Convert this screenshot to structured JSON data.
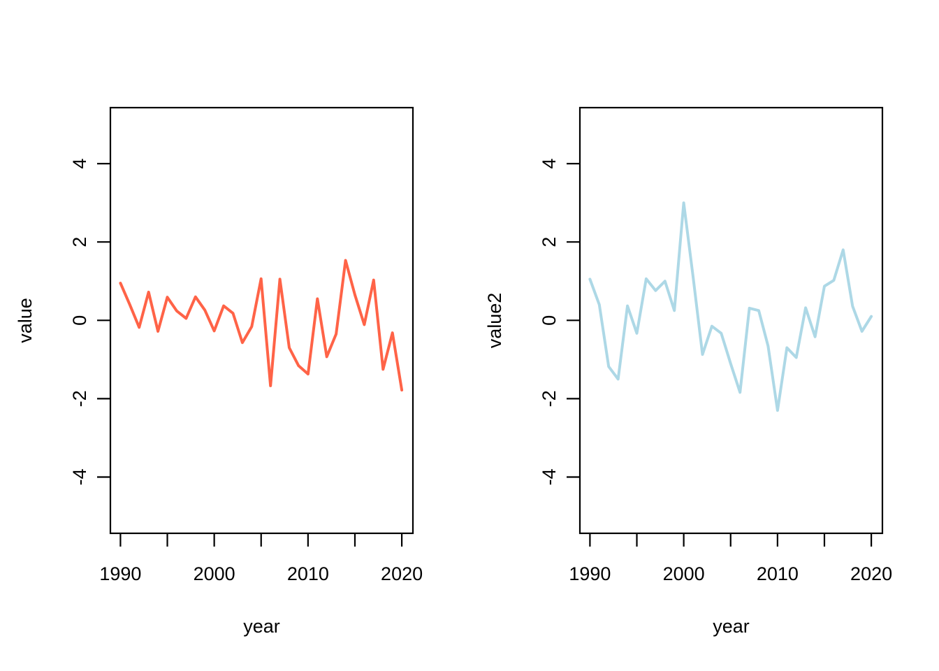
{
  "page": {
    "background": "#ffffff",
    "text_color": "#000000"
  },
  "chart_data": [
    {
      "type": "line",
      "panel": "left",
      "title": "",
      "xlabel": "year",
      "ylabel": "value",
      "line_color": "#FF6347",
      "line_color_name": "tomato",
      "axis_color": "#000000",
      "grid": false,
      "legend": null,
      "xlim": [
        1988.9,
        2021.1
      ],
      "ylim": [
        -5.4,
        5.4
      ],
      "xticks": [
        1990,
        1995,
        2000,
        2005,
        2010,
        2015,
        2020
      ],
      "xtick_labels": [
        "1990",
        "",
        "2000",
        "",
        "2010",
        "",
        "2020"
      ],
      "yticks": [
        -4,
        -2,
        0,
        2,
        4
      ],
      "ytick_labels": [
        "-4",
        "-2",
        "0",
        "2",
        "4"
      ],
      "x": [
        1990,
        1991,
        1992,
        1993,
        1994,
        1995,
        1996,
        1997,
        1998,
        1999,
        2000,
        2001,
        2002,
        2003,
        2004,
        2005,
        2006,
        2007,
        2008,
        2009,
        2010,
        2011,
        2012,
        2013,
        2014,
        2015,
        2016,
        2017,
        2018,
        2019,
        2020
      ],
      "values": [
        0.95,
        0.4,
        -0.18,
        0.72,
        -0.28,
        0.59,
        0.24,
        0.05,
        0.6,
        0.26,
        -0.27,
        0.37,
        0.18,
        -0.57,
        -0.16,
        1.06,
        -1.67,
        1.05,
        -0.7,
        -1.16,
        -1.37,
        0.55,
        -0.93,
        -0.35,
        1.53,
        0.65,
        -0.11,
        1.03,
        -1.25,
        -0.32,
        -1.78
      ]
    },
    {
      "type": "line",
      "panel": "right",
      "title": "",
      "xlabel": "year",
      "ylabel": "value2",
      "line_color": "#ADD8E6",
      "line_color_name": "lightblue",
      "axis_color": "#000000",
      "grid": false,
      "legend": null,
      "xlim": [
        1988.9,
        2021.1
      ],
      "ylim": [
        -5.4,
        5.4
      ],
      "xticks": [
        1990,
        1995,
        2000,
        2005,
        2010,
        2015,
        2020
      ],
      "xtick_labels": [
        "1990",
        "",
        "2000",
        "",
        "2010",
        "",
        "2020"
      ],
      "yticks": [
        -4,
        -2,
        0,
        2,
        4
      ],
      "ytick_labels": [
        "-4",
        "-2",
        "0",
        "2",
        "4"
      ],
      "x": [
        1990,
        1991,
        1992,
        1993,
        1994,
        1995,
        1996,
        1997,
        1998,
        1999,
        2000,
        2001,
        2002,
        2003,
        2004,
        2005,
        2006,
        2007,
        2008,
        2009,
        2010,
        2011,
        2012,
        2013,
        2014,
        2015,
        2016,
        2017,
        2018,
        2019,
        2020
      ],
      "values": [
        1.05,
        0.4,
        -1.18,
        -1.5,
        0.37,
        -0.33,
        1.06,
        0.76,
        1.0,
        0.25,
        3.0,
        1.1,
        -0.87,
        -0.15,
        -0.33,
        -1.1,
        -1.84,
        0.31,
        0.25,
        -0.66,
        -2.3,
        -0.7,
        -0.95,
        0.32,
        -0.42,
        0.87,
        1.02,
        1.8,
        0.36,
        -0.28,
        0.1
      ]
    }
  ]
}
